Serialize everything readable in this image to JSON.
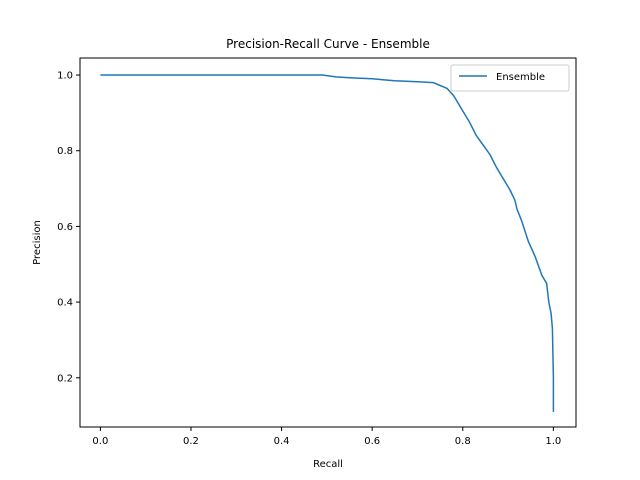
{
  "chart_data": {
    "type": "line",
    "title": "Precision-Recall Curve - Ensemble",
    "xlabel": "Recall",
    "ylabel": "Precision",
    "xlim": [
      -0.045,
      1.05
    ],
    "ylim": [
      0.07,
      1.045
    ],
    "xticks": [
      0.0,
      0.2,
      0.4,
      0.6,
      0.8,
      1.0
    ],
    "xtick_labels": [
      "0.0",
      "0.2",
      "0.4",
      "0.6",
      "0.8",
      "1.0"
    ],
    "yticks": [
      0.2,
      0.4,
      0.6,
      0.8,
      1.0
    ],
    "ytick_labels": [
      "0.2",
      "0.4",
      "0.6",
      "0.8",
      "1.0"
    ],
    "grid": false,
    "legend_position": "top-right",
    "series": [
      {
        "name": "Ensemble",
        "color": "#1f77b4",
        "x": [
          0.0,
          0.1,
          0.2,
          0.3,
          0.4,
          0.49,
          0.52,
          0.55,
          0.6,
          0.63,
          0.65,
          0.7,
          0.735,
          0.745,
          0.755,
          0.765,
          0.78,
          0.8,
          0.815,
          0.83,
          0.845,
          0.86,
          0.875,
          0.89,
          0.905,
          0.915,
          0.92,
          0.93,
          0.945,
          0.96,
          0.975,
          0.985,
          0.99,
          0.995,
          0.998,
          1.0,
          1.0
        ],
        "y": [
          1.0,
          1.0,
          1.0,
          1.0,
          1.0,
          1.0,
          0.995,
          0.993,
          0.99,
          0.987,
          0.985,
          0.982,
          0.98,
          0.975,
          0.97,
          0.965,
          0.945,
          0.905,
          0.875,
          0.84,
          0.815,
          0.79,
          0.755,
          0.725,
          0.695,
          0.67,
          0.645,
          0.615,
          0.56,
          0.52,
          0.47,
          0.45,
          0.4,
          0.37,
          0.33,
          0.2,
          0.11
        ]
      }
    ]
  }
}
